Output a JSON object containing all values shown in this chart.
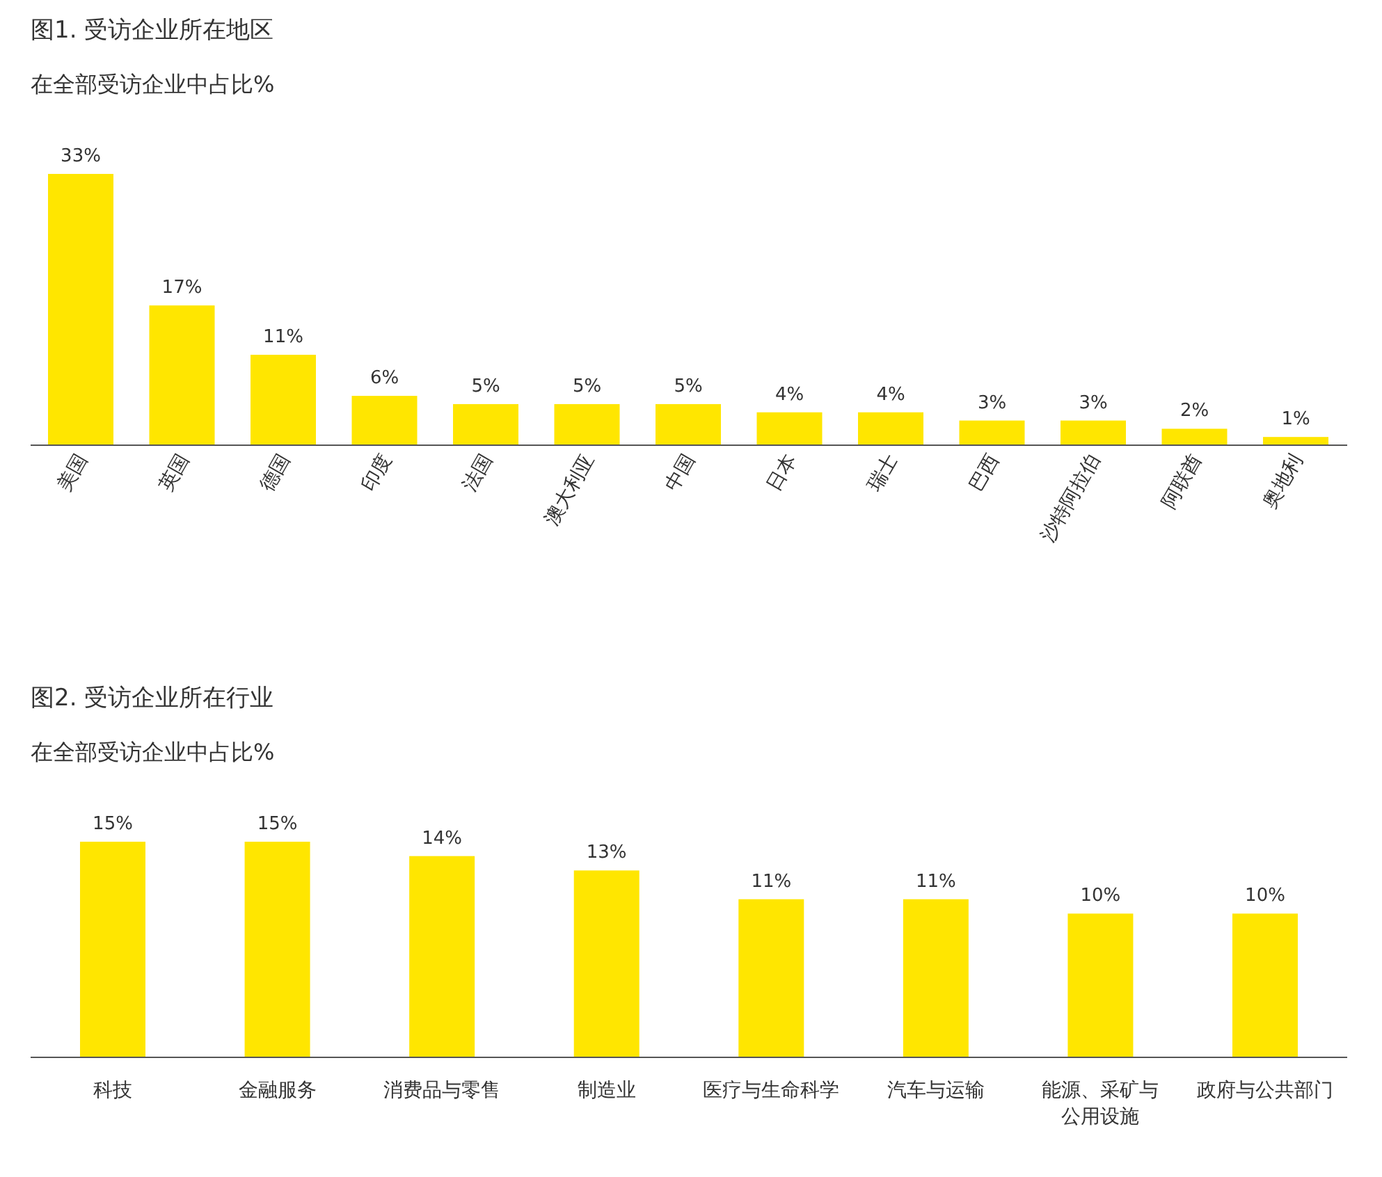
{
  "chart_data": [
    {
      "type": "bar",
      "title": "图1. 受访企业所在地区",
      "subtitle": "在全部受访企业中占比%",
      "color": "#ffe600",
      "categories": [
        "美国",
        "英国",
        "德国",
        "印度",
        "法国",
        "澳大利亚",
        "中国",
        "日本",
        "瑞士",
        "巴西",
        "沙特阿拉伯",
        "阿联酋",
        "奥地利"
      ],
      "values": [
        33,
        17,
        11,
        6,
        5,
        5,
        5,
        4,
        4,
        3,
        3,
        2,
        1
      ],
      "value_labels": [
        "33%",
        "17%",
        "11%",
        "6%",
        "5%",
        "5%",
        "5%",
        "4%",
        "4%",
        "3%",
        "3%",
        "2%",
        "1%"
      ]
    },
    {
      "type": "bar",
      "title": "图2. 受访企业所在行业",
      "subtitle": "在全部受访企业中占比%",
      "color": "#ffe600",
      "categories": [
        "科技",
        "金融服务",
        "消费品与零售",
        "制造业",
        "医疗与生命科学",
        "汽车与运输",
        "能源、采矿与公用设施",
        "政府与公共部门"
      ],
      "values": [
        15,
        15,
        14,
        13,
        11,
        11,
        10,
        10
      ],
      "value_labels": [
        "15%",
        "15%",
        "14%",
        "13%",
        "11%",
        "11%",
        "10%",
        "10%"
      ]
    }
  ]
}
